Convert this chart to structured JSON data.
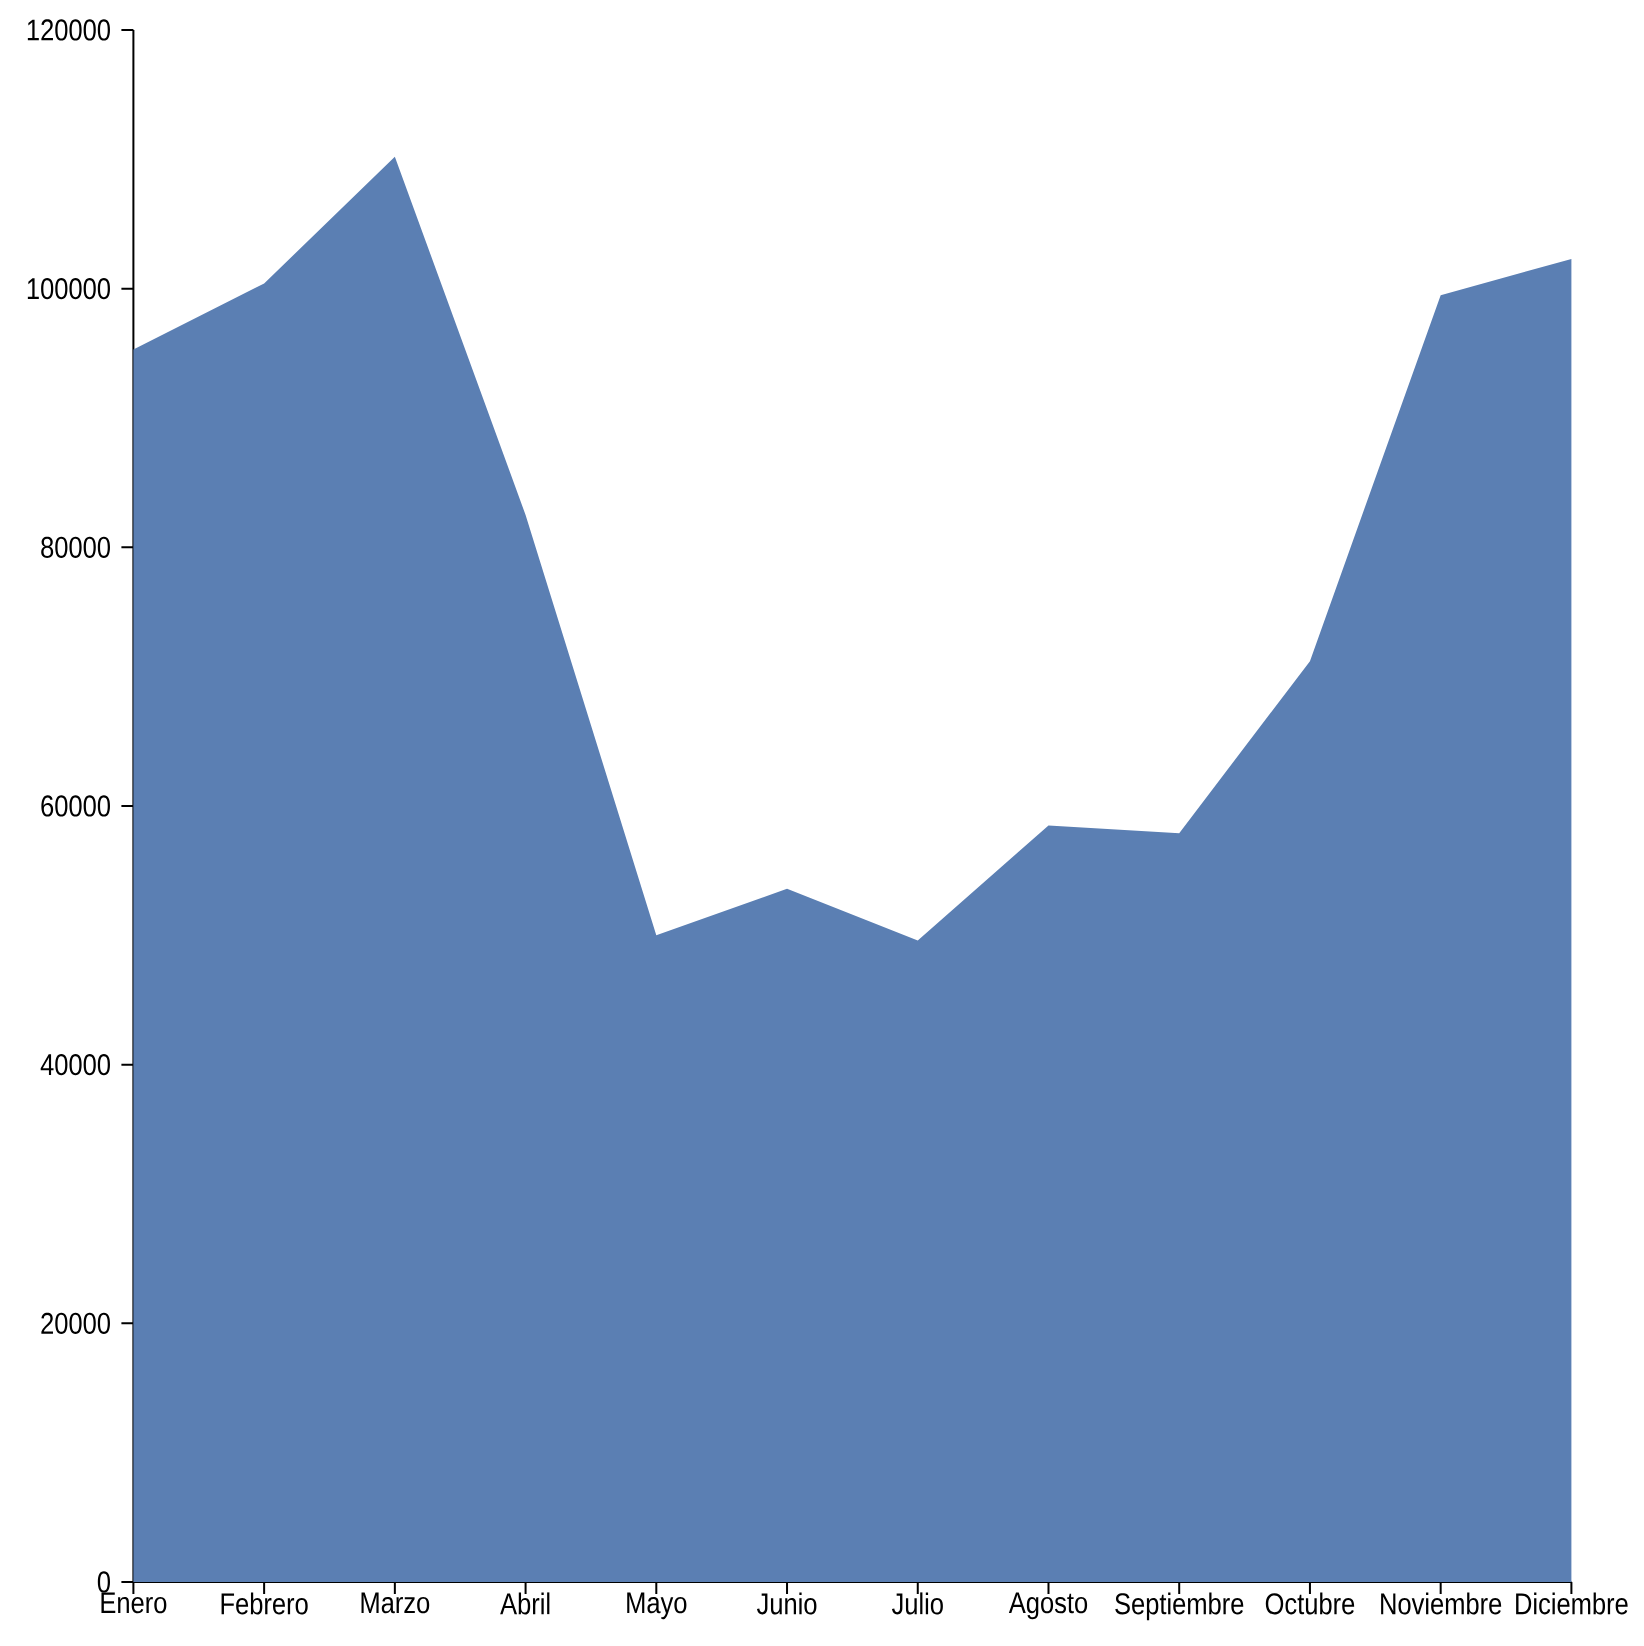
{
  "chart_data": {
    "type": "area",
    "categories": [
      "Enero",
      "Febrero",
      "Marzo",
      "Abril",
      "Mayo",
      "Junio",
      "Julio",
      "Agosto",
      "Septiembre",
      "Octubre",
      "Noviembre",
      "Diciembre"
    ],
    "values": [
      95300,
      100400,
      110200,
      82500,
      50000,
      53600,
      49600,
      58500,
      57900,
      71200,
      99500,
      102300
    ],
    "color": "#5b7fb3",
    "ylim": [
      0,
      120000
    ],
    "yticks": [
      0,
      20000,
      40000,
      60000,
      80000,
      100000,
      120000
    ]
  }
}
